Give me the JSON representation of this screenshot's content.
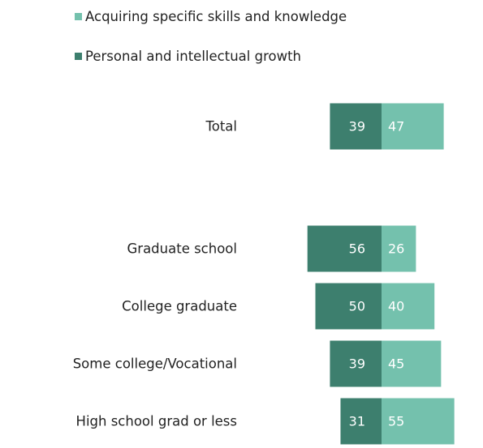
{
  "chart_data": {
    "type": "bar",
    "orientation": "horizontal",
    "stacking": "diverging",
    "categories": [
      "Total",
      "Graduate school",
      "College graduate",
      "Some college/Vocational",
      "High school grad or less"
    ],
    "series": [
      {
        "name": "Personal and intellectual growth",
        "values": [
          39,
          56,
          50,
          39,
          31
        ],
        "color": "#3d7f6e"
      },
      {
        "name": "Acquiring specific skills and knowledge",
        "values": [
          47,
          26,
          40,
          45,
          55
        ],
        "color": "#74c1ad"
      }
    ],
    "legend_order": [
      1,
      0
    ],
    "legend_position": "top",
    "data_labels": true,
    "grid": false
  }
}
